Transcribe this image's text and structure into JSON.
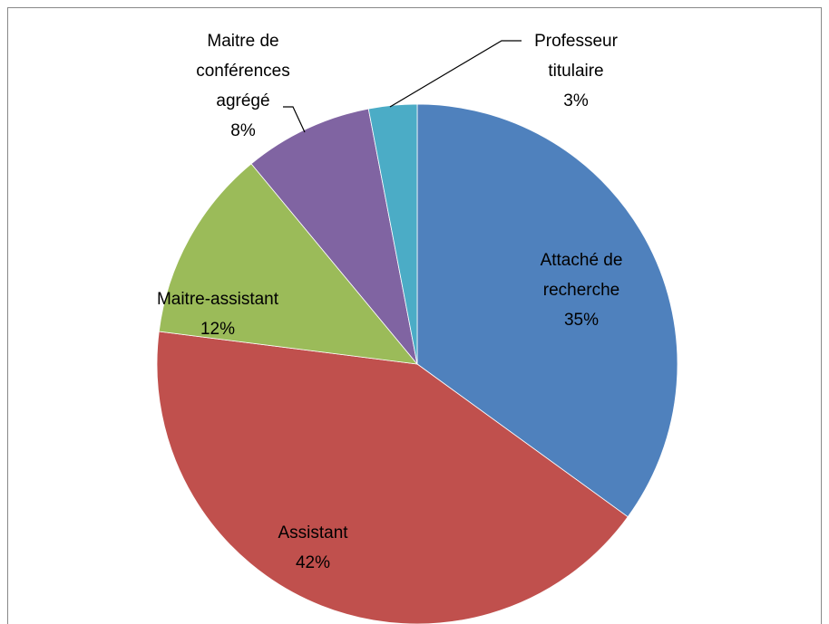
{
  "chart_data": {
    "type": "pie",
    "categories": [
      "Attaché de recherche",
      "Assistant",
      "Maitre-assistant",
      "Maitre de conférences agrégé",
      "Professeur titulaire"
    ],
    "values": [
      35,
      42,
      12,
      8,
      3
    ],
    "value_labels": [
      "35%",
      "42%",
      "12%",
      "8%",
      "3%"
    ],
    "colors": [
      "#4f81bd",
      "#c0504d",
      "#9bbb59",
      "#8064a2",
      "#4bacc6"
    ]
  }
}
